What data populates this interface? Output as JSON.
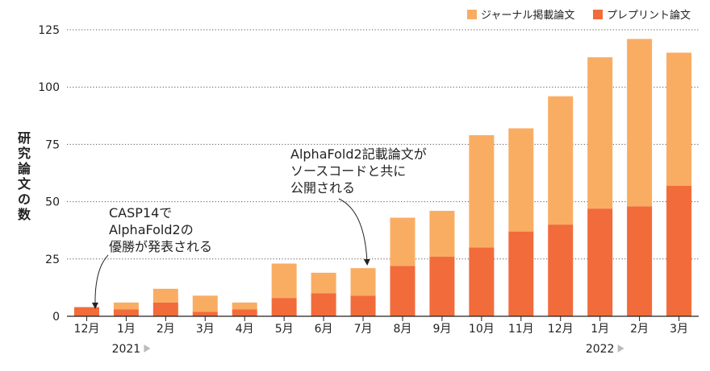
{
  "chart_data": {
    "type": "bar",
    "stacked": true,
    "ylabel": "研究論文の数",
    "ylim": [
      0,
      125
    ],
    "yticks": [
      0,
      25,
      50,
      75,
      100,
      125
    ],
    "grid": true,
    "legend_position": "top-right",
    "categories": [
      "12月",
      "1月",
      "2月",
      "3月",
      "4月",
      "5月",
      "6月",
      "7月",
      "8月",
      "9月",
      "10月",
      "11月",
      "12月",
      "1月",
      "2月",
      "3月"
    ],
    "series": [
      {
        "name": "プレプリント論文",
        "color": "#f26b3a",
        "values": [
          4,
          3,
          6,
          2,
          3,
          8,
          10,
          9,
          22,
          26,
          30,
          37,
          40,
          47,
          48,
          57
        ]
      },
      {
        "name": "ジャーナル掲載論文",
        "color": "#f9ad63",
        "values": [
          0,
          3,
          6,
          7,
          3,
          15,
          9,
          12,
          21,
          20,
          49,
          45,
          56,
          66,
          73,
          58
        ]
      }
    ],
    "legend_order": [
      1,
      0
    ],
    "years": [
      {
        "label": "2021",
        "start_index": 1
      },
      {
        "label": "2022",
        "start_index": 13
      }
    ],
    "annotations": [
      {
        "lines": [
          "CASP14で",
          "AlphaFold2の",
          "優勝が発表される"
        ],
        "target_index": 0
      },
      {
        "lines": [
          "AlphaFold2記載論文が",
          "ソースコードと共に",
          "公開される"
        ],
        "target_index": 7
      }
    ]
  }
}
